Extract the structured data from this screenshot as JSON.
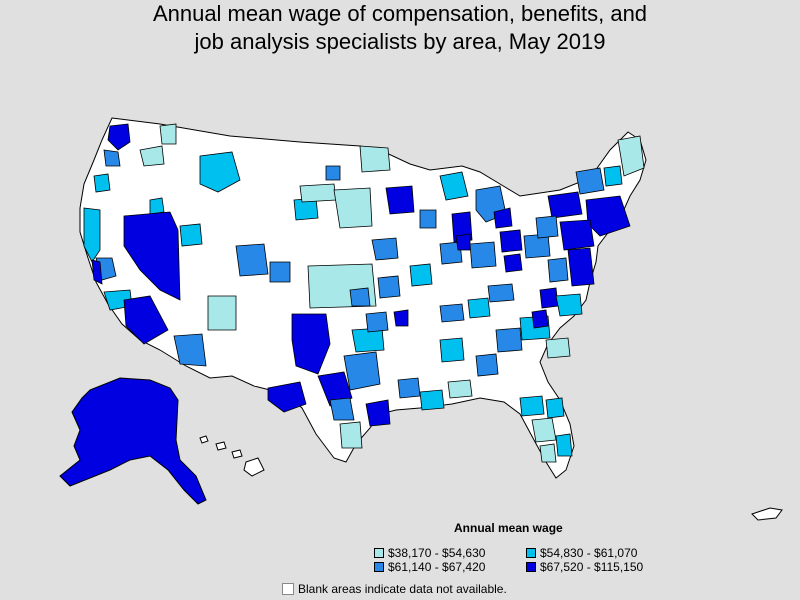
{
  "title": {
    "line1": "Annual mean wage of compensation, benefits, and",
    "line2": "job analysis specialists by area, May 2019"
  },
  "legend": {
    "title": "Annual mean wage",
    "items": [
      {
        "label": "$38,170 - $54,630",
        "color": "#a8e8e8"
      },
      {
        "label": "$54,830 - $61,070",
        "color": "#00c0f0"
      },
      {
        "label": "$61,140 - $67,420",
        "color": "#2888e8"
      },
      {
        "label": "$67,520 - $115,150",
        "color": "#0000e0"
      }
    ]
  },
  "note": "Blank areas indicate data not available.",
  "colors": {
    "background": "#e0e0e0",
    "no_data": "#ffffff",
    "border": "#000000"
  }
}
